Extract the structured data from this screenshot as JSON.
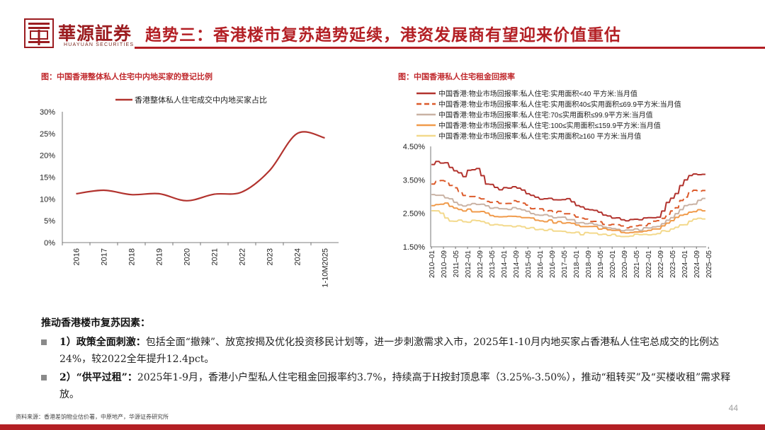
{
  "header": {
    "logo_cn": "華源証券",
    "logo_en": "HUAYUAN SECURITIES",
    "title": "趋势三：香港楼市复苏趋势延续，港资发展商有望迎来价值重估"
  },
  "colors": {
    "brand_red": "#b31f24",
    "chart_title_red": "#c0282c"
  },
  "chart_data": [
    {
      "type": "line",
      "title": "图：中国香港整体私人住宅中内地买家的登记比例",
      "x": [
        "2016",
        "2017",
        "2018",
        "2019",
        "2020",
        "2021",
        "2022",
        "2023",
        "2024",
        "1-10M2025"
      ],
      "series": [
        {
          "name": "香港整体私人住宅成交中内地买家占比",
          "color": "#b2332e",
          "values": [
            11.2,
            12.0,
            11.0,
            11.2,
            9.6,
            11.1,
            11.6,
            16.5,
            25.0,
            24.0
          ]
        }
      ],
      "ylim": [
        0,
        30
      ],
      "yticks": [
        "0%",
        "5%",
        "10%",
        "15%",
        "20%",
        "25%",
        "30%"
      ],
      "grid": false,
      "legend": "top"
    },
    {
      "type": "line",
      "title": "图：中国香港私人住宅租金回报率",
      "x_start": "2010-01",
      "x_step_months": 1,
      "xticks": [
        "2010–01",
        "2010–09",
        "2011–05",
        "2012–01",
        "2012–09",
        "2013–05",
        "2014–01",
        "2014–09",
        "2015–05",
        "2016–01",
        "2016–09",
        "2017–05",
        "2018–01",
        "2018–09",
        "2019–05",
        "2020–01",
        "2020–09",
        "2021–05",
        "2022–01",
        "2022–09",
        "2023–05",
        "2024–01",
        "2024–09",
        "2025–05"
      ],
      "ylim": [
        1.5,
        4.5
      ],
      "yticks": [
        "1.50%",
        "2.50%",
        "3.50%",
        "4.50%"
      ],
      "grid": false,
      "legend": "top",
      "series": [
        {
          "name": "中国香港:物业市场回报率:私人住宅:实用面积<40 平方米:当月值",
          "color": "#b2332e",
          "dash": "",
          "anchors": [
            [
              0,
              4.0
            ],
            [
              8,
              4.05
            ],
            [
              14,
              3.8
            ],
            [
              22,
              3.6
            ],
            [
              24,
              3.8
            ],
            [
              30,
              3.8
            ],
            [
              36,
              3.4
            ],
            [
              44,
              3.2
            ],
            [
              56,
              3.3
            ],
            [
              64,
              3.05
            ],
            [
              72,
              2.95
            ],
            [
              80,
              2.95
            ],
            [
              90,
              2.9
            ],
            [
              96,
              2.75
            ],
            [
              102,
              2.65
            ],
            [
              108,
              2.55
            ],
            [
              114,
              2.45
            ],
            [
              120,
              2.35
            ],
            [
              128,
              2.3
            ],
            [
              136,
              2.3
            ],
            [
              144,
              2.4
            ],
            [
              150,
              2.4
            ],
            [
              156,
              2.8
            ],
            [
              162,
              3.1
            ],
            [
              168,
              3.5
            ],
            [
              172,
              3.7
            ],
            [
              177,
              3.68
            ],
            [
              182,
              3.7
            ]
          ]
        },
        {
          "name": "中国香港:物业市场回报率:私人住宅:实用面积40≤实用面积≤69.9平方米:当月值",
          "color": "#dc5a2a",
          "dash": "9,5",
          "anchors": [
            [
              0,
              3.4
            ],
            [
              8,
              3.5
            ],
            [
              16,
              3.2
            ],
            [
              22,
              3.0
            ],
            [
              30,
              3.0
            ],
            [
              36,
              2.85
            ],
            [
              48,
              2.8
            ],
            [
              56,
              2.85
            ],
            [
              64,
              2.7
            ],
            [
              72,
              2.6
            ],
            [
              80,
              2.55
            ],
            [
              90,
              2.5
            ],
            [
              96,
              2.4
            ],
            [
              104,
              2.3
            ],
            [
              112,
              2.2
            ],
            [
              120,
              2.15
            ],
            [
              128,
              2.1
            ],
            [
              136,
              2.1
            ],
            [
              144,
              2.2
            ],
            [
              150,
              2.25
            ],
            [
              156,
              2.45
            ],
            [
              162,
              2.7
            ],
            [
              168,
              3.0
            ],
            [
              172,
              3.2
            ],
            [
              177,
              3.15
            ],
            [
              182,
              3.2
            ]
          ]
        },
        {
          "name": "中国香港:物业市场回报率:私人住宅:70≤实用面积≤99.9平方米:当月值",
          "color": "#c9b2a4",
          "dash": "",
          "anchors": [
            [
              0,
              3.1
            ],
            [
              6,
              3.05
            ],
            [
              12,
              2.9
            ],
            [
              20,
              2.7
            ],
            [
              28,
              2.8
            ],
            [
              36,
              2.7
            ],
            [
              48,
              2.6
            ],
            [
              56,
              2.65
            ],
            [
              64,
              2.55
            ],
            [
              72,
              2.45
            ],
            [
              80,
              2.4
            ],
            [
              90,
              2.35
            ],
            [
              96,
              2.25
            ],
            [
              104,
              2.2
            ],
            [
              112,
              2.1
            ],
            [
              120,
              2.05
            ],
            [
              128,
              2.0
            ],
            [
              136,
              2.0
            ],
            [
              144,
              2.05
            ],
            [
              150,
              2.1
            ],
            [
              156,
              2.3
            ],
            [
              162,
              2.5
            ],
            [
              168,
              2.7
            ],
            [
              174,
              2.8
            ],
            [
              182,
              2.95
            ]
          ]
        },
        {
          "name": "中国香港:物业市场回报率:私人住宅:100≤实用面积≤159.9平方米:当月值",
          "color": "#f09a4a",
          "dash": "",
          "anchors": [
            [
              0,
              2.75
            ],
            [
              8,
              2.8
            ],
            [
              16,
              2.6
            ],
            [
              24,
              2.6
            ],
            [
              32,
              2.55
            ],
            [
              40,
              2.45
            ],
            [
              48,
              2.4
            ],
            [
              56,
              2.45
            ],
            [
              64,
              2.35
            ],
            [
              72,
              2.3
            ],
            [
              80,
              2.25
            ],
            [
              90,
              2.2
            ],
            [
              96,
              2.15
            ],
            [
              104,
              2.1
            ],
            [
              112,
              2.05
            ],
            [
              120,
              2.0
            ],
            [
              128,
              1.95
            ],
            [
              136,
              1.95
            ],
            [
              144,
              2.0
            ],
            [
              150,
              2.05
            ],
            [
              156,
              2.2
            ],
            [
              162,
              2.35
            ],
            [
              168,
              2.5
            ],
            [
              174,
              2.55
            ],
            [
              182,
              2.6
            ]
          ]
        },
        {
          "name": "中国香港:物业市场回报率:私人住宅:实用面积≥160 平方米:当月值",
          "color": "#f3d98c",
          "dash": "",
          "anchors": [
            [
              0,
              2.6
            ],
            [
              6,
              2.5
            ],
            [
              12,
              2.3
            ],
            [
              20,
              2.25
            ],
            [
              28,
              2.3
            ],
            [
              36,
              2.2
            ],
            [
              48,
              2.15
            ],
            [
              56,
              2.1
            ],
            [
              64,
              2.05
            ],
            [
              72,
              2.0
            ],
            [
              80,
              1.98
            ],
            [
              90,
              1.95
            ],
            [
              96,
              1.9
            ],
            [
              104,
              1.9
            ],
            [
              112,
              1.88
            ],
            [
              120,
              1.85
            ],
            [
              126,
              1.8
            ],
            [
              132,
              1.85
            ],
            [
              140,
              1.85
            ],
            [
              148,
              1.9
            ],
            [
              156,
              2.0
            ],
            [
              162,
              2.1
            ],
            [
              168,
              2.2
            ],
            [
              174,
              2.3
            ],
            [
              182,
              2.35
            ]
          ]
        }
      ]
    }
  ],
  "factors": {
    "heading": "推动香港楼市复苏因素：",
    "items": [
      {
        "label": "1）政策全面刺激：",
        "text": "包括全面“撤辣”、放宽按揭及优化投资移民计划等，进一步刺激需求入市，2025年1-10月内地买家占香港私人住宅总成交的比例达24%，较2022全年提升12.4pct。"
      },
      {
        "label": "2）“供平过租”：",
        "text": "2025年1-9月，香港小户型私人住宅租金回报率约3.7%，持续高于H按封顶息率（3.25%-3.50%），推动“租转买”及“买楼收租”需求释放。"
      }
    ]
  },
  "footer": {
    "page_number": "44",
    "source": "资料来源：香港差饷物业估价署，中原地产，华源证券研究所"
  }
}
